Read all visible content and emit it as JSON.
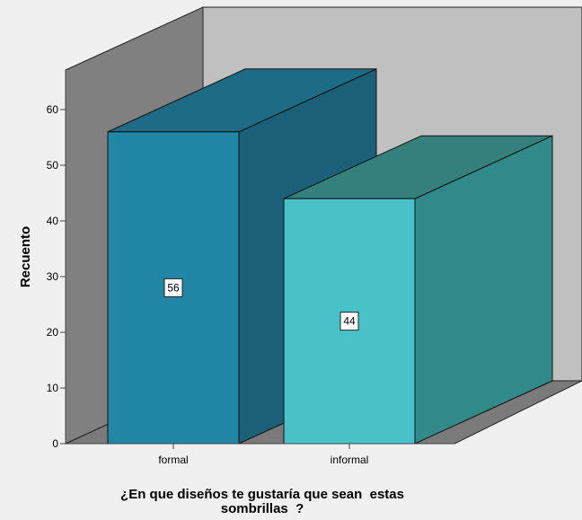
{
  "chart_data": {
    "type": "bar",
    "categories": [
      "formal",
      "informal"
    ],
    "values": [
      56,
      44
    ],
    "data_labels": [
      "56",
      "44"
    ],
    "xlabel_lines": [
      "¿En que diseños te gustaría que sean  estas",
      "sombrillas  ?"
    ],
    "ylabel": "Recuento",
    "ylim": [
      0,
      60
    ],
    "yticks": [
      0,
      10,
      20,
      30,
      40,
      50,
      60
    ],
    "style": "3d",
    "grid": false,
    "bar_colors": [
      {
        "front": "#2286a6",
        "side": "#1b5f79",
        "top": "#1d6b85"
      },
      {
        "front": "#48c1c8",
        "side": "#318989",
        "top": "#35807d"
      }
    ],
    "wall_colors": {
      "back": "#c0c0c0",
      "left": "#808080",
      "floor": "#7a7a7a"
    }
  }
}
